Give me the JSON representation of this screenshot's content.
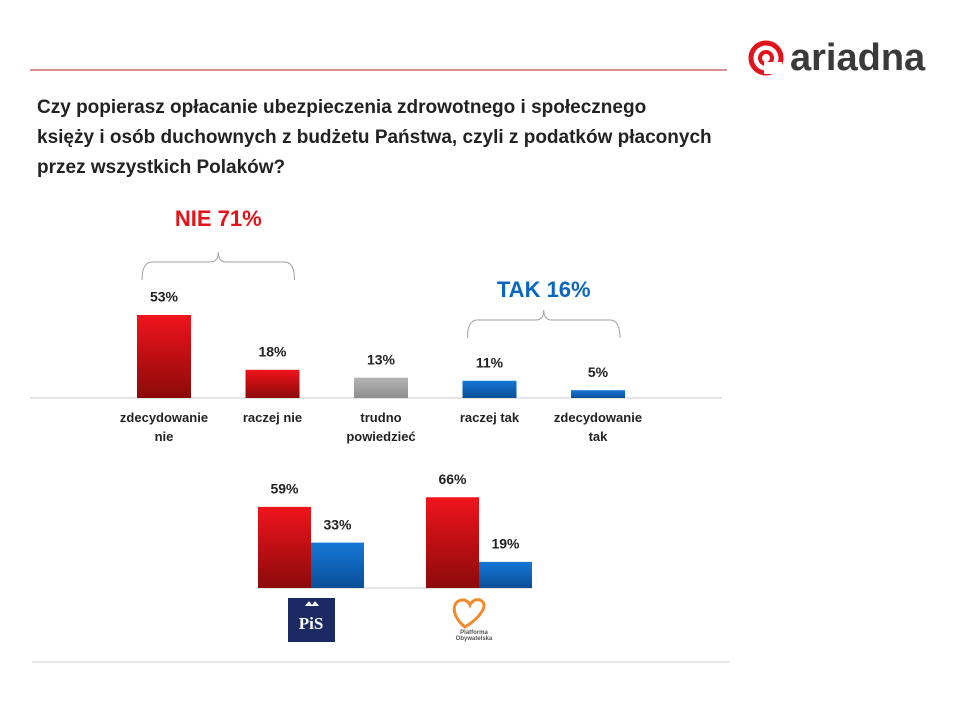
{
  "brand": "ariadna",
  "title_lines": [
    "Czy popierasz opłacanie ubezpieczenia zdrowotnego i społecznego",
    "księży i osób duchownych z budżetu Państwa, czyli z podatków płaconych",
    "przez wszystkich Polaków?"
  ],
  "chart_data": [
    {
      "type": "bar",
      "categories": [
        "zdecydowanie nie",
        "raczej nie",
        "trudno powiedzieć",
        "raczej tak",
        "zdecydowanie tak"
      ],
      "values": [
        53,
        18,
        13,
        11,
        5
      ],
      "value_labels": [
        "53%",
        "18%",
        "13%",
        "11%",
        "5%"
      ],
      "colors": [
        "#e3131b",
        "#e3131b",
        "#a6a6a6",
        "#0b66c3",
        "#0b66c3"
      ],
      "annotations": [
        {
          "text": "NIE 71%",
          "color": "#e3131b"
        },
        {
          "text": "TAK 16%",
          "color": "#0b66c3"
        }
      ]
    },
    {
      "type": "grouped_bar",
      "categories": [
        "PiS",
        "Platforma Obywatelska"
      ],
      "series": [
        {
          "color": "#e3131b",
          "values": [
            59,
            66
          ],
          "value_labels": [
            "59%",
            "66%"
          ]
        },
        {
          "color": "#0b66c3",
          "values": [
            33,
            19
          ],
          "value_labels": [
            "33%",
            "19%"
          ]
        }
      ]
    }
  ]
}
